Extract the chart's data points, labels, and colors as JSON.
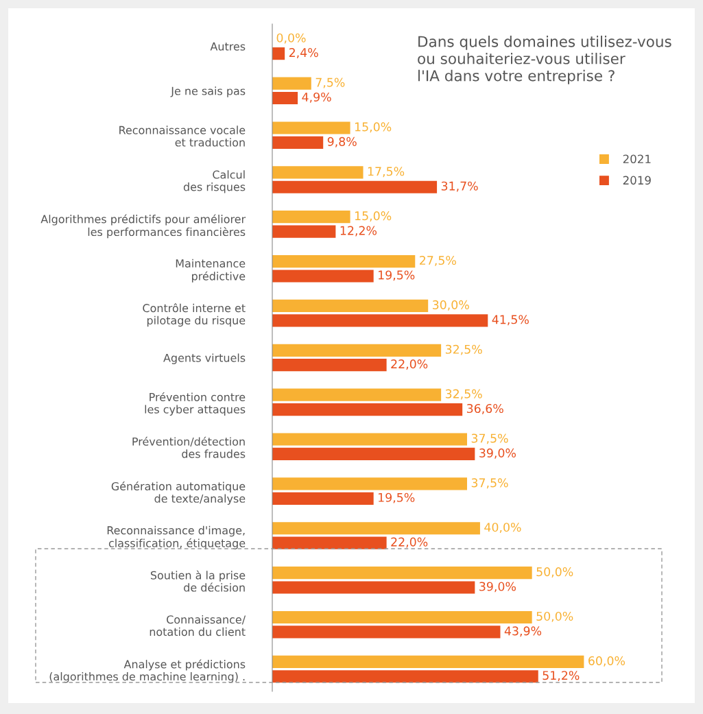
{
  "chart_data": {
    "type": "bar",
    "orientation": "horizontal",
    "title": "Dans quels domaines utilisez-vous\nou souhaiteriez-vous utiliser\nl'IA dans votre entreprise ?",
    "categories": [
      "Autres",
      "Je ne sais pas",
      "Reconnaissance vocale\net traduction",
      "Calcul\ndes risques",
      "Algorithmes prédictifs pour améliorer\nles performances financières",
      "Maintenance\nprédictive",
      "Contrôle interne et\npilotage du risque",
      "Agents virtuels",
      "Prévention contre\nles cyber attaques",
      "Prévention/détection\ndes fraudes",
      "Génération automatique\nde texte/analyse",
      "Reconnaissance d'image,\nclassification, étiquetage",
      "Soutien à la prise\nde décision",
      "Connaissance/\nnotation du client",
      "Analyse et prédictions\n(algorithmes de machine learning) ."
    ],
    "series": [
      {
        "name": "2021",
        "color": "#f8b133",
        "values": [
          0.0,
          7.5,
          15.0,
          17.5,
          15.0,
          27.5,
          30.0,
          32.5,
          32.5,
          37.5,
          37.5,
          40.0,
          50.0,
          50.0,
          60.0
        ],
        "value_labels": [
          "0,0%",
          "7,5%",
          "15,0%",
          "17,5%",
          "15,0%",
          "27,5%",
          "30,0%",
          "32,5%",
          "32,5%",
          "37,5%",
          "37,5%",
          "40,0%",
          "50,0%",
          "50,0%",
          "60,0%"
        ]
      },
      {
        "name": "2019",
        "color": "#e8501f",
        "values": [
          2.4,
          4.9,
          9.8,
          31.7,
          12.2,
          19.5,
          41.5,
          22.0,
          36.6,
          39.0,
          19.5,
          22.0,
          39.0,
          43.9,
          51.2
        ],
        "value_labels": [
          "2,4%",
          "4,9%",
          "9,8%",
          "31,7%",
          "12,2%",
          "19,5%",
          "41,5%",
          "22,0%",
          "36,6%",
          "39,0%",
          "19,5%",
          "22,0%",
          "39,0%",
          "43,9%",
          "51,2%"
        ]
      }
    ],
    "legend": "right",
    "grid": false
  }
}
